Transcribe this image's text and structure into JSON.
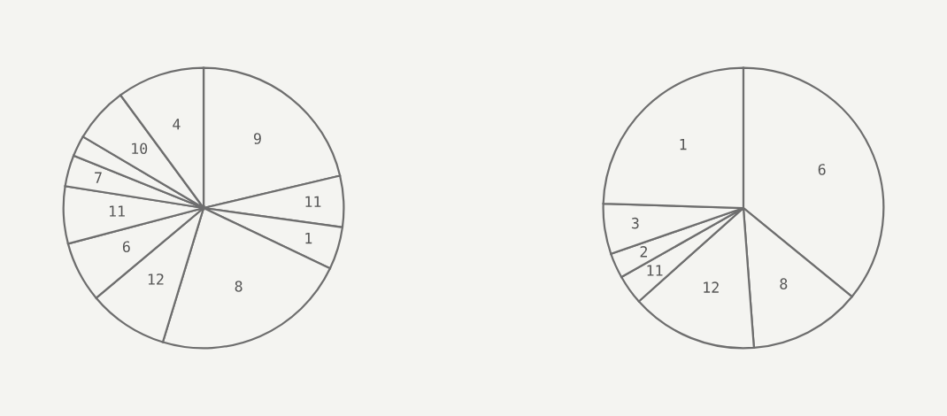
{
  "chart_data": [
    {
      "type": "pie",
      "categories": [
        "9",
        "11",
        "1",
        "8",
        "12",
        "6",
        "11",
        "7",
        null,
        "10",
        "4"
      ],
      "values": [
        21.3,
        5.9,
        4.9,
        22.6,
        9.2,
        7.0,
        6.6,
        3.6,
        2.4,
        6.4,
        10.1
      ],
      "colors": [
        "#f4f4f1",
        "#f4f4f1",
        "#f4f4f1",
        "#f4f4f1",
        "#f4f4f1",
        "#f4f4f1",
        "#f4f4f1",
        "#f4f4f1",
        "#f4f4f1",
        "#f4f4f1",
        "#f4f4f1"
      ]
    },
    {
      "type": "pie",
      "categories": [
        "6",
        "8",
        "12",
        "11",
        "2",
        "3",
        "1"
      ],
      "values": [
        35.9,
        12.9,
        14.6,
        3.4,
        2.9,
        5.8,
        24.5
      ],
      "colors": [
        "#f4f4f1",
        "#f4f4f1",
        "#f4f4f1",
        "#f4f4f1",
        "#f4f4f1",
        "#f4f4f1",
        "#f4f4f1"
      ]
    }
  ]
}
